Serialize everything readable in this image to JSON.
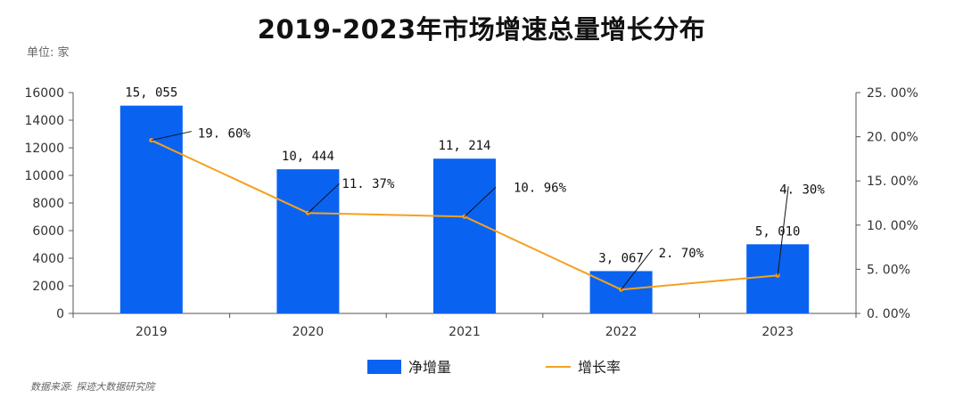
{
  "header": {
    "title": "2019-2023年市场增速总量增长分布",
    "unit": "单位: 家",
    "source": "数据来源: 探迹大数据研究院"
  },
  "chart_data": {
    "type": "bar",
    "categories": [
      "2019",
      "2020",
      "2021",
      "2022",
      "2023"
    ],
    "series": [
      {
        "name": "净增量",
        "type": "bar",
        "axis": "left",
        "values": [
          15055,
          10444,
          11214,
          3067,
          5010
        ],
        "labels": [
          "15, 055",
          "10, 444",
          "11, 214",
          "3, 067",
          "5, 010"
        ],
        "color": "#0A63F0"
      },
      {
        "name": "增长率",
        "type": "line",
        "axis": "right",
        "values": [
          19.6,
          11.37,
          10.96,
          2.7,
          4.3
        ],
        "labels": [
          "19. 60%",
          "11. 37%",
          "10. 96%",
          "2. 70%",
          "4. 30%"
        ],
        "color": "#F5A020"
      }
    ],
    "y_left": {
      "ylim": [
        0,
        16000
      ],
      "ticks": [
        "0",
        "2000",
        "4000",
        "6000",
        "8000",
        "10000",
        "12000",
        "14000",
        "16000"
      ]
    },
    "y_right": {
      "ylim": [
        0,
        25
      ],
      "ticks": [
        "0. 00%",
        "5. 00%",
        "10. 00%",
        "15. 00%",
        "20. 00%",
        "25. 00%"
      ]
    },
    "legend_position": "bottom-center",
    "grid": false
  }
}
